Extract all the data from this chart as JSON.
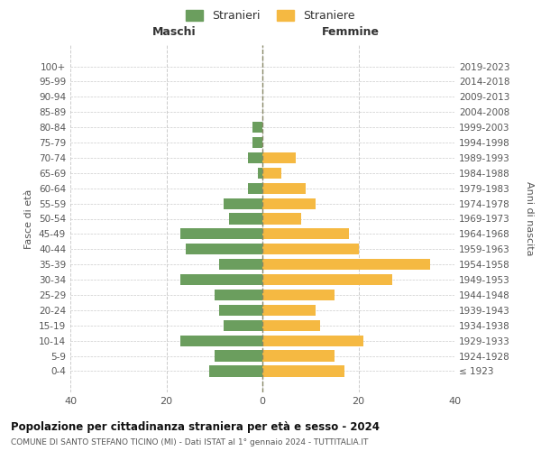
{
  "age_groups": [
    "100+",
    "95-99",
    "90-94",
    "85-89",
    "80-84",
    "75-79",
    "70-74",
    "65-69",
    "60-64",
    "55-59",
    "50-54",
    "45-49",
    "40-44",
    "35-39",
    "30-34",
    "25-29",
    "20-24",
    "15-19",
    "10-14",
    "5-9",
    "0-4"
  ],
  "birth_years": [
    "≤ 1923",
    "1924-1928",
    "1929-1933",
    "1934-1938",
    "1939-1943",
    "1944-1948",
    "1949-1953",
    "1954-1958",
    "1959-1963",
    "1964-1968",
    "1969-1973",
    "1974-1978",
    "1979-1983",
    "1984-1988",
    "1989-1993",
    "1994-1998",
    "1999-2003",
    "2004-2008",
    "2009-2013",
    "2014-2018",
    "2019-2023"
  ],
  "maschi": [
    0,
    0,
    0,
    0,
    2,
    2,
    3,
    1,
    3,
    8,
    7,
    17,
    16,
    9,
    17,
    10,
    9,
    8,
    17,
    10,
    11
  ],
  "femmine": [
    0,
    0,
    0,
    0,
    0,
    0,
    7,
    4,
    9,
    11,
    8,
    18,
    20,
    35,
    27,
    15,
    11,
    12,
    21,
    15,
    17
  ],
  "color_maschi": "#6b9e5e",
  "color_femmine": "#f5b942",
  "background_color": "#ffffff",
  "grid_color": "#cccccc",
  "title": "Popolazione per cittadinanza straniera per età e sesso - 2024",
  "subtitle": "COMUNE DI SANTO STEFANO TICINO (MI) - Dati ISTAT al 1° gennaio 2024 - TUTTITALIA.IT",
  "legend_maschi": "Stranieri",
  "legend_femmine": "Straniere",
  "xlabel_left": "Maschi",
  "xlabel_right": "Femmine",
  "ylabel_left": "Fasce di età",
  "ylabel_right": "Anni di nascita",
  "xlim": 40,
  "center_line_color": "#888866"
}
